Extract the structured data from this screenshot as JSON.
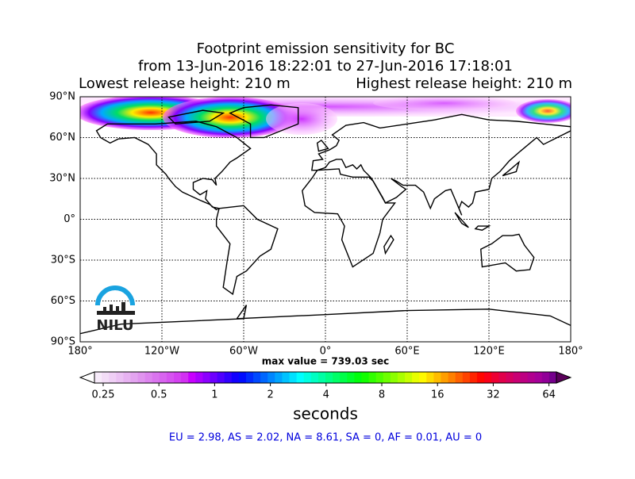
{
  "header": {
    "title_lines": [
      "Footprint emission sensitivity for BC",
      "from 13-Jun-2016 18:22:01 to 27-Jun-2016 17:18:01"
    ],
    "lowest": "Lowest release height: 210 m",
    "highest": "Highest release height: 210 m"
  },
  "map": {
    "lat_labels": [
      "90°N",
      "60°N",
      "30°N",
      "0°",
      "30°S",
      "60°S",
      "90°S"
    ],
    "lon_labels": [
      "180°",
      "120°W",
      "60°W",
      "0°",
      "60°E",
      "120°E",
      "180°"
    ],
    "max_value": "max value = 739.03 sec"
  },
  "logo": "NILU",
  "colorbar": {
    "ticks": [
      "0.25",
      "0.5",
      "1",
      "2",
      "4",
      "8",
      "16",
      "32",
      "64"
    ],
    "label": "seconds"
  },
  "summary": "EU = 2.98,  AS = 2.02,  NA = 8.61,  SA = 0,  AF = 0.01,  AU = 0"
}
